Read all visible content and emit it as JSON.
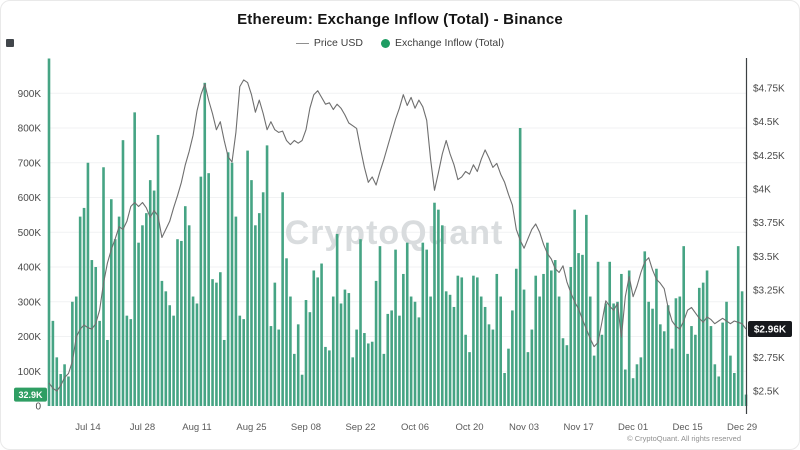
{
  "header": {
    "title": "Ethereum: Exchange Inflow (Total) - Binance"
  },
  "legend": [
    {
      "label": "Price USD",
      "type": "line",
      "color": "#8f8f8f"
    },
    {
      "label": "Exchange Inflow (Total)",
      "type": "dot",
      "color": "#1f9d63"
    }
  ],
  "watermark": "CryptoQuant",
  "copyright": "© CryptoQuant. All rights reserved",
  "left_axis": {
    "badge": {
      "label": "32.9K",
      "value": 32.9,
      "bg": "#2f9e63",
      "fg": "#ffffff"
    },
    "ticks": [
      {
        "label": "0",
        "value": 0
      },
      {
        "label": "100K",
        "value": 100
      },
      {
        "label": "200K",
        "value": 200
      },
      {
        "label": "300K",
        "value": 300
      },
      {
        "label": "400K",
        "value": 400
      },
      {
        "label": "500K",
        "value": 500
      },
      {
        "label": "600K",
        "value": 600
      },
      {
        "label": "700K",
        "value": 700
      },
      {
        "label": "800K",
        "value": 800
      },
      {
        "label": "900K",
        "value": 900
      }
    ]
  },
  "right_axis": {
    "badge": {
      "label": "$2.96K",
      "value": 2.96,
      "bg": "#17191d",
      "fg": "#ffffff"
    },
    "ticks": [
      {
        "label": "$2.5K",
        "value": 2.5
      },
      {
        "label": "$2.75K",
        "value": 2.75
      },
      {
        "label": "$3.25K",
        "value": 3.25
      },
      {
        "label": "$3.5K",
        "value": 3.5
      },
      {
        "label": "$3.75K",
        "value": 3.75
      },
      {
        "label": "$4K",
        "value": 4.0
      },
      {
        "label": "$4.25K",
        "value": 4.25
      },
      {
        "label": "$4.5K",
        "value": 4.5
      },
      {
        "label": "$4.75K",
        "value": 4.75
      }
    ]
  },
  "x_axis": {
    "ticks": [
      {
        "label": "Jul 14",
        "index": 10
      },
      {
        "label": "Jul 28",
        "index": 24
      },
      {
        "label": "Aug 11",
        "index": 38
      },
      {
        "label": "Aug 25",
        "index": 52
      },
      {
        "label": "Sep 08",
        "index": 66
      },
      {
        "label": "Sep 22",
        "index": 80
      },
      {
        "label": "Oct 06",
        "index": 94
      },
      {
        "label": "Oct 20",
        "index": 108
      },
      {
        "label": "Nov 03",
        "index": 122
      },
      {
        "label": "Nov 17",
        "index": 136
      },
      {
        "label": "Dec 01",
        "index": 150
      },
      {
        "label": "Dec 15",
        "index": 164
      },
      {
        "label": "Dec 29",
        "index": 178
      }
    ]
  },
  "chart_data": {
    "type": "combo",
    "x_start_date": "Jul 04",
    "x_end_date": "Dec 30",
    "n_points": 180,
    "left_ylim": [
      0,
      1000
    ],
    "right_ylim_usd_k": [
      2.5,
      4.85
    ],
    "grid": "horizontal-faint",
    "series": [
      {
        "name": "Exchange Inflow (Total)",
        "type": "bar",
        "unit": "K ETH",
        "color": "#46a484",
        "values": [
          1000,
          245,
          140,
          92,
          120,
          85,
          300,
          315,
          545,
          570,
          700,
          420,
          400,
          245,
          687,
          190,
          595,
          480,
          545,
          765,
          260,
          250,
          845,
          470,
          520,
          555,
          650,
          620,
          780,
          360,
          330,
          290,
          260,
          480,
          475,
          575,
          520,
          315,
          295,
          660,
          930,
          670,
          365,
          355,
          385,
          190,
          730,
          700,
          545,
          260,
          250,
          735,
          650,
          520,
          555,
          615,
          750,
          230,
          355,
          220,
          615,
          425,
          315,
          150,
          235,
          90,
          305,
          270,
          390,
          370,
          410,
          170,
          160,
          315,
          495,
          295,
          335,
          325,
          140,
          220,
          480,
          210,
          180,
          185,
          360,
          460,
          150,
          265,
          275,
          450,
          260,
          380,
          470,
          315,
          300,
          255,
          470,
          450,
          315,
          585,
          565,
          520,
          330,
          320,
          285,
          375,
          370,
          205,
          155,
          375,
          370,
          315,
          285,
          235,
          220,
          380,
          315,
          95,
          165,
          275,
          395,
          800,
          335,
          155,
          220,
          375,
          315,
          380,
          470,
          390,
          420,
          315,
          195,
          175,
          400,
          565,
          440,
          435,
          550,
          315,
          145,
          415,
          205,
          295,
          415,
          295,
          300,
          380,
          105,
          390,
          80,
          120,
          140,
          445,
          300,
          280,
          395,
          235,
          215,
          290,
          165,
          310,
          315,
          460,
          150,
          230,
          205,
          340,
          355,
          390,
          230,
          120,
          85,
          240,
          300,
          145,
          95,
          460,
          330,
          32.9
        ]
      },
      {
        "name": "Price USD",
        "type": "line",
        "unit": "$K",
        "color": "#6f6f6f",
        "values": [
          2.56,
          2.52,
          2.5,
          2.54,
          2.6,
          2.63,
          2.72,
          2.9,
          2.96,
          2.99,
          2.97,
          2.96,
          3.0,
          3.1,
          3.3,
          3.45,
          3.55,
          3.63,
          3.72,
          3.7,
          3.76,
          3.87,
          3.9,
          3.87,
          3.9,
          3.86,
          3.79,
          3.84,
          3.8,
          3.64,
          3.7,
          3.76,
          3.86,
          3.95,
          4.05,
          4.18,
          4.28,
          4.4,
          4.58,
          4.7,
          4.78,
          4.66,
          4.56,
          4.44,
          4.5,
          4.36,
          4.24,
          4.2,
          4.42,
          4.76,
          4.81,
          4.79,
          4.7,
          4.57,
          4.66,
          4.56,
          4.44,
          4.5,
          4.44,
          4.42,
          4.43,
          4.36,
          4.33,
          4.36,
          4.34,
          4.36,
          4.44,
          4.6,
          4.7,
          4.73,
          4.68,
          4.63,
          4.64,
          4.59,
          4.63,
          4.6,
          4.55,
          4.49,
          4.47,
          4.45,
          4.3,
          4.16,
          4.05,
          4.09,
          4.03,
          4.13,
          4.22,
          4.32,
          4.42,
          4.52,
          4.6,
          4.7,
          4.62,
          4.68,
          4.6,
          4.66,
          4.61,
          4.51,
          4.22,
          3.99,
          4.12,
          4.26,
          4.36,
          4.26,
          4.18,
          4.07,
          4.09,
          4.13,
          4.11,
          4.18,
          4.13,
          4.22,
          4.29,
          4.23,
          4.16,
          4.19,
          4.11,
          4.05,
          3.96,
          3.88,
          3.7,
          3.62,
          3.56,
          3.63,
          3.7,
          3.74,
          3.68,
          3.59,
          3.52,
          3.48,
          3.41,
          3.38,
          3.43,
          3.31,
          3.23,
          3.16,
          3.11,
          3.03,
          2.96,
          2.89,
          2.83,
          2.86,
          3.01,
          3.17,
          3.13,
          3.1,
          3.15,
          2.9,
          3.2,
          3.35,
          3.2,
          3.28,
          3.38,
          3.46,
          3.49,
          3.4,
          3.33,
          3.3,
          3.26,
          3.12,
          3.02,
          2.98,
          2.96,
          3.02,
          3.1,
          3.12,
          3.08,
          3.04,
          3.01,
          3.05,
          3.03,
          3.0,
          3.02,
          3.04,
          3.02,
          3.0,
          3.02,
          3.01,
          3.0,
          2.96
        ]
      }
    ]
  }
}
